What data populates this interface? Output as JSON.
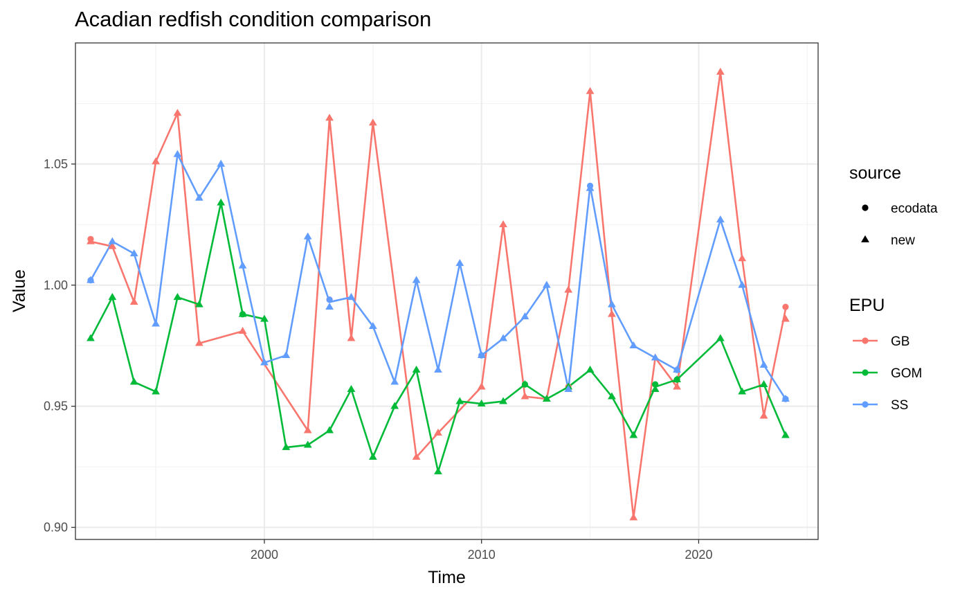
{
  "chart_data": {
    "type": "line",
    "title": "Acadian redfish condition comparison",
    "xlabel": "Time",
    "ylabel": "Value",
    "xlim": [
      1991.3,
      2025.5
    ],
    "ylim": [
      0.895,
      1.1
    ],
    "x_ticks": [
      2000,
      2010,
      2020
    ],
    "x_tick_labels": [
      "2000",
      "2010",
      "2020"
    ],
    "y_ticks": [
      0.9,
      0.95,
      1.0,
      1.05
    ],
    "y_tick_labels": [
      "0.90",
      "0.95",
      "1.00",
      "1.05"
    ],
    "grid": true,
    "legend_position": "right",
    "legends": {
      "source": {
        "title": "source",
        "entries": [
          {
            "label": "ecodata",
            "shape": "circle"
          },
          {
            "label": "new",
            "shape": "triangle"
          }
        ]
      },
      "epu": {
        "title": "EPU",
        "entries": [
          {
            "label": "GB",
            "color": "#F8766D"
          },
          {
            "label": "GOM",
            "color": "#00BA38"
          },
          {
            "label": "SS",
            "color": "#619CFF"
          }
        ]
      }
    },
    "series": [
      {
        "name": "GB",
        "color": "#F8766D",
        "points": [
          [
            1992,
            1.018
          ],
          [
            1993,
            1.016
          ],
          [
            1994,
            0.993
          ],
          [
            1995,
            1.051
          ],
          [
            1996,
            1.071
          ],
          [
            1997,
            0.976
          ],
          [
            1999,
            0.981
          ],
          [
            2002,
            0.94
          ],
          [
            2003,
            1.069
          ],
          [
            2004,
            0.978
          ],
          [
            2005,
            1.067
          ],
          [
            2007,
            0.929
          ],
          [
            2008,
            0.939
          ],
          [
            2010,
            0.958
          ],
          [
            2011,
            1.025
          ],
          [
            2012,
            0.954
          ],
          [
            2013,
            0.953
          ],
          [
            2014,
            0.998
          ],
          [
            2015,
            1.08
          ],
          [
            2016,
            0.988
          ],
          [
            2017,
            0.904
          ],
          [
            2018,
            0.97
          ],
          [
            2019,
            0.958
          ],
          [
            2021,
            1.088
          ],
          [
            2022,
            1.011
          ],
          [
            2023,
            0.946
          ],
          [
            2024,
            0.99
          ]
        ]
      },
      {
        "name": "GOM",
        "color": "#00BA38",
        "points": [
          [
            1992,
            0.978
          ],
          [
            1993,
            0.995
          ],
          [
            1994,
            0.96
          ],
          [
            1995,
            0.956
          ],
          [
            1996,
            0.995
          ],
          [
            1997,
            0.992
          ],
          [
            1998,
            1.034
          ],
          [
            1999,
            0.988
          ],
          [
            2000,
            0.986
          ],
          [
            2001,
            0.933
          ],
          [
            2002,
            0.934
          ],
          [
            2003,
            0.94
          ],
          [
            2004,
            0.957
          ],
          [
            2005,
            0.929
          ],
          [
            2006,
            0.95
          ],
          [
            2007,
            0.965
          ],
          [
            2008,
            0.923
          ],
          [
            2009,
            0.952
          ],
          [
            2010,
            0.951
          ],
          [
            2011,
            0.952
          ],
          [
            2012,
            0.959
          ],
          [
            2013,
            0.953
          ],
          [
            2014,
            0.958
          ],
          [
            2015,
            0.965
          ],
          [
            2016,
            0.954
          ],
          [
            2017,
            0.938
          ],
          [
            2018,
            0.958
          ],
          [
            2019,
            0.961
          ],
          [
            2021,
            0.978
          ],
          [
            2022,
            0.956
          ],
          [
            2023,
            0.959
          ],
          [
            2024,
            0.938
          ]
        ]
      },
      {
        "name": "SS",
        "color": "#619CFF",
        "points": [
          [
            1992,
            1.002
          ],
          [
            1993,
            1.018
          ],
          [
            1994,
            1.013
          ],
          [
            1995,
            0.984
          ],
          [
            1996,
            1.054
          ],
          [
            1997,
            1.036
          ],
          [
            1998,
            1.05
          ],
          [
            1999,
            1.008
          ],
          [
            2000,
            0.968
          ],
          [
            2001,
            0.971
          ],
          [
            2002,
            1.02
          ],
          [
            2003,
            0.993
          ],
          [
            2004,
            0.995
          ],
          [
            2005,
            0.983
          ],
          [
            2006,
            0.96
          ],
          [
            2007,
            1.002
          ],
          [
            2008,
            0.965
          ],
          [
            2009,
            1.009
          ],
          [
            2010,
            0.971
          ],
          [
            2011,
            0.978
          ],
          [
            2012,
            0.987
          ],
          [
            2013,
            1.0
          ],
          [
            2014,
            0.957
          ],
          [
            2015,
            1.041
          ],
          [
            2016,
            0.992
          ],
          [
            2017,
            0.975
          ],
          [
            2018,
            0.97
          ],
          [
            2019,
            0.965
          ],
          [
            2021,
            1.027
          ],
          [
            2022,
            1.0
          ],
          [
            2023,
            0.967
          ],
          [
            2024,
            0.953
          ]
        ]
      }
    ],
    "markers": [
      {
        "series": "GB",
        "source": "ecodata",
        "points": [
          [
            1992,
            1.019
          ],
          [
            2003,
            0.994
          ],
          [
            2014,
            0.958
          ],
          [
            2024,
            0.991
          ]
        ]
      },
      {
        "series": "GB",
        "source": "new",
        "points": [
          [
            1992,
            1.018
          ],
          [
            1993,
            1.016
          ],
          [
            1994,
            0.993
          ],
          [
            1995,
            1.051
          ],
          [
            1996,
            1.071
          ],
          [
            1997,
            0.976
          ],
          [
            1999,
            0.981
          ],
          [
            2002,
            0.94
          ],
          [
            2003,
            1.069
          ],
          [
            2004,
            0.978
          ],
          [
            2005,
            1.067
          ],
          [
            2007,
            0.929
          ],
          [
            2008,
            0.939
          ],
          [
            2010,
            0.958
          ],
          [
            2011,
            1.025
          ],
          [
            2012,
            0.954
          ],
          [
            2013,
            0.953
          ],
          [
            2014,
            0.998
          ],
          [
            2015,
            1.08
          ],
          [
            2016,
            0.988
          ],
          [
            2017,
            0.904
          ],
          [
            2018,
            0.97
          ],
          [
            2019,
            0.958
          ],
          [
            2021,
            1.088
          ],
          [
            2022,
            1.011
          ],
          [
            2023,
            0.946
          ],
          [
            2024,
            0.986
          ]
        ]
      },
      {
        "series": "GOM",
        "source": "ecodata",
        "points": [
          [
            1999,
            0.988
          ],
          [
            2012,
            0.959
          ],
          [
            2018,
            0.959
          ],
          [
            2019,
            0.961
          ]
        ]
      },
      {
        "series": "GOM",
        "source": "new",
        "points": [
          [
            1992,
            0.978
          ],
          [
            1993,
            0.995
          ],
          [
            1994,
            0.96
          ],
          [
            1995,
            0.956
          ],
          [
            1996,
            0.995
          ],
          [
            1997,
            0.992
          ],
          [
            1998,
            1.034
          ],
          [
            1999,
            0.988
          ],
          [
            2000,
            0.986
          ],
          [
            2001,
            0.933
          ],
          [
            2002,
            0.934
          ],
          [
            2003,
            0.94
          ],
          [
            2004,
            0.957
          ],
          [
            2005,
            0.929
          ],
          [
            2006,
            0.95
          ],
          [
            2007,
            0.965
          ],
          [
            2008,
            0.923
          ],
          [
            2009,
            0.952
          ],
          [
            2010,
            0.951
          ],
          [
            2011,
            0.952
          ],
          [
            2012,
            0.959
          ],
          [
            2013,
            0.953
          ],
          [
            2014,
            0.958
          ],
          [
            2015,
            0.965
          ],
          [
            2016,
            0.954
          ],
          [
            2017,
            0.938
          ],
          [
            2018,
            0.957
          ],
          [
            2019,
            0.961
          ],
          [
            2021,
            0.978
          ],
          [
            2022,
            0.956
          ],
          [
            2023,
            0.959
          ],
          [
            2024,
            0.938
          ]
        ]
      },
      {
        "series": "SS",
        "source": "ecodata",
        "points": [
          [
            1992,
            1.002
          ],
          [
            2003,
            0.994
          ],
          [
            2010,
            0.971
          ],
          [
            2015,
            1.041
          ],
          [
            2019,
            0.965
          ],
          [
            2024,
            0.953
          ]
        ]
      },
      {
        "series": "SS",
        "source": "new",
        "points": [
          [
            1992,
            1.002
          ],
          [
            1993,
            1.018
          ],
          [
            1994,
            1.013
          ],
          [
            1995,
            0.984
          ],
          [
            1996,
            1.054
          ],
          [
            1997,
            1.036
          ],
          [
            1998,
            1.05
          ],
          [
            1999,
            1.008
          ],
          [
            2000,
            0.968
          ],
          [
            2001,
            0.971
          ],
          [
            2002,
            1.02
          ],
          [
            2003,
            0.991
          ],
          [
            2004,
            0.995
          ],
          [
            2005,
            0.983
          ],
          [
            2006,
            0.96
          ],
          [
            2007,
            1.002
          ],
          [
            2008,
            0.965
          ],
          [
            2009,
            1.009
          ],
          [
            2010,
            0.971
          ],
          [
            2011,
            0.978
          ],
          [
            2012,
            0.987
          ],
          [
            2013,
            1.0
          ],
          [
            2014,
            0.957
          ],
          [
            2015,
            1.04
          ],
          [
            2016,
            0.992
          ],
          [
            2017,
            0.975
          ],
          [
            2018,
            0.97
          ],
          [
            2019,
            0.965
          ],
          [
            2021,
            1.027
          ],
          [
            2022,
            1.0
          ],
          [
            2023,
            0.967
          ],
          [
            2024,
            0.953
          ]
        ]
      }
    ]
  }
}
